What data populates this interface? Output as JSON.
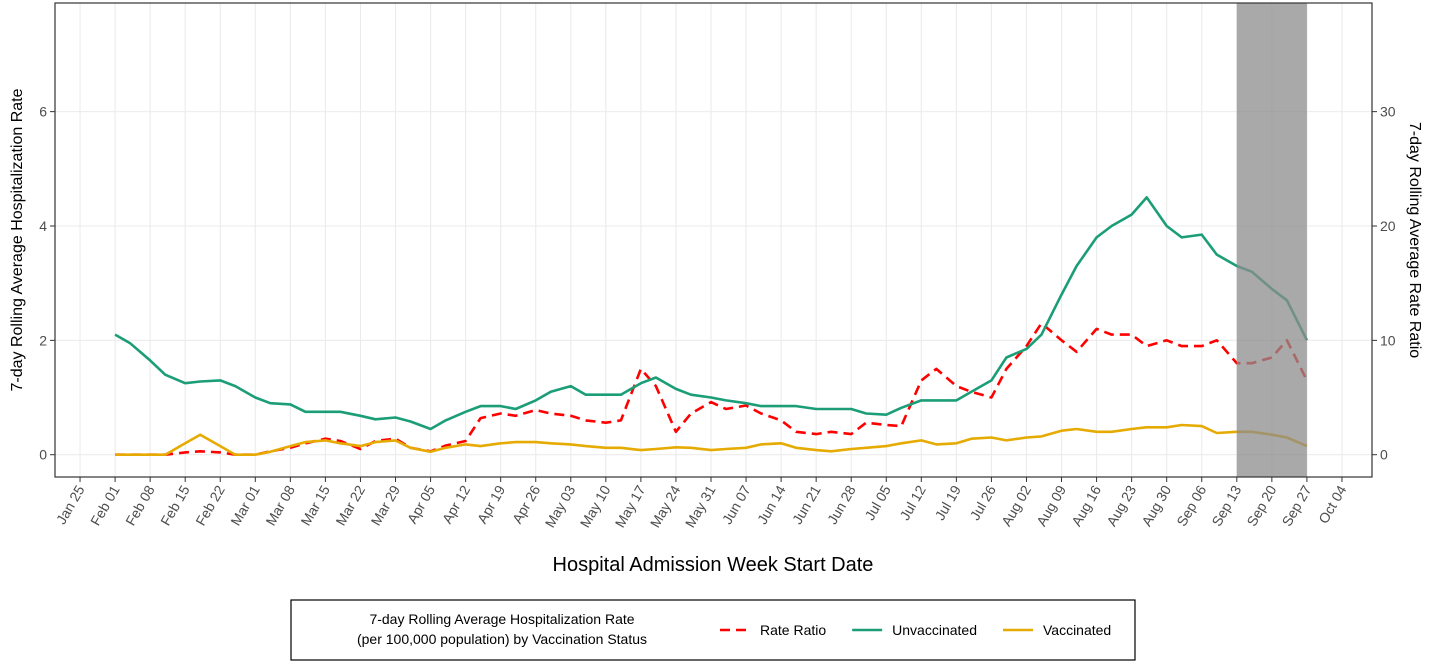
{
  "chart_data": {
    "type": "line",
    "x_label": "Hospital Admission Week Start Date",
    "y_label": "7-day Rolling Average Hospitalization Rate",
    "y2_label": "7-day Rolling Average Rate Ratio",
    "legend_title": [
      "7-day Rolling Average Hospitalization Rate",
      "(per 100,000 population) by Vaccination Status"
    ],
    "legend_position": "bottom",
    "grid": true,
    "shaded_region": [
      "Sep 13",
      "Sep 27"
    ],
    "shaded_color": "#8c8c8c",
    "xlim": [
      "Jan 20",
      "Oct 10"
    ],
    "xticks": [
      "Jan 25",
      "Feb 01",
      "Feb 08",
      "Feb 15",
      "Feb 22",
      "Mar 01",
      "Mar 08",
      "Mar 15",
      "Mar 22",
      "Mar 29",
      "Apr 05",
      "Apr 12",
      "Apr 19",
      "Apr 26",
      "May 03",
      "May 10",
      "May 17",
      "May 24",
      "May 31",
      "Jun 07",
      "Jun 14",
      "Jun 21",
      "Jun 28",
      "Jul 05",
      "Jul 12",
      "Jul 19",
      "Jul 26",
      "Aug 02",
      "Aug 09",
      "Aug 16",
      "Aug 23",
      "Aug 30",
      "Sep 06",
      "Sep 13",
      "Sep 20",
      "Sep 27",
      "Oct 04"
    ],
    "ylim": [
      -0.39,
      7.9
    ],
    "yticks": [
      0,
      2,
      4,
      6
    ],
    "y2lim": [
      -1.95,
      39.5
    ],
    "y2ticks": [
      0,
      10,
      20,
      30
    ],
    "x": [
      "Feb 01",
      "Feb 04",
      "Feb 08",
      "Feb 11",
      "Feb 15",
      "Feb 18",
      "Feb 22",
      "Feb 25",
      "Mar 01",
      "Mar 04",
      "Mar 08",
      "Mar 11",
      "Mar 15",
      "Mar 18",
      "Mar 22",
      "Mar 25",
      "Mar 29",
      "Apr 01",
      "Apr 05",
      "Apr 08",
      "Apr 12",
      "Apr 15",
      "Apr 19",
      "Apr 22",
      "Apr 26",
      "Apr 29",
      "May 03",
      "May 06",
      "May 10",
      "May 13",
      "May 17",
      "May 20",
      "May 24",
      "May 27",
      "May 31",
      "Jun 03",
      "Jun 07",
      "Jun 10",
      "Jun 14",
      "Jun 17",
      "Jun 21",
      "Jun 24",
      "Jun 28",
      "Jul 01",
      "Jul 05",
      "Jul 08",
      "Jul 12",
      "Jul 15",
      "Jul 19",
      "Jul 22",
      "Jul 26",
      "Jul 29",
      "Aug 02",
      "Aug 05",
      "Aug 09",
      "Aug 12",
      "Aug 16",
      "Aug 19",
      "Aug 23",
      "Aug 26",
      "Aug 30",
      "Sep 02",
      "Sep 06",
      "Sep 09",
      "Sep 13",
      "Sep 16",
      "Sep 20",
      "Sep 23",
      "Sep 27"
    ],
    "series": [
      {
        "name": "Rate Ratio",
        "color": "#ff0000",
        "dashed": true,
        "axis": "y2",
        "values": [
          0,
          0,
          0,
          0,
          0.2,
          0.3,
          0.2,
          0,
          0,
          0.3,
          0.6,
          1.0,
          1.4,
          1.2,
          0.5,
          1.2,
          1.4,
          0.6,
          0.3,
          0.8,
          1.2,
          3.2,
          3.6,
          3.4,
          3.9,
          3.6,
          3.4,
          3.0,
          2.8,
          3.0,
          7.5,
          6.0,
          2.0,
          3.6,
          4.6,
          4.0,
          4.3,
          3.6,
          3.0,
          2.0,
          1.8,
          2.0,
          1.8,
          2.8,
          2.6,
          2.5,
          6.5,
          7.5,
          6.0,
          5.5,
          5.0,
          7.5,
          9.5,
          11.5,
          10.0,
          9.0,
          11.0,
          10.5,
          10.5,
          9.5,
          10.0,
          9.5,
          9.5,
          10.0,
          8.0,
          8.0,
          8.5,
          10.0,
          6.5
        ]
      },
      {
        "name": "Unvaccinated",
        "color": "#1b9e77",
        "values": [
          2.1,
          1.95,
          1.65,
          1.4,
          1.25,
          1.28,
          1.3,
          1.2,
          1.0,
          0.9,
          0.88,
          0.75,
          0.75,
          0.75,
          0.68,
          0.62,
          0.65,
          0.58,
          0.45,
          0.6,
          0.75,
          0.85,
          0.85,
          0.8,
          0.95,
          1.1,
          1.2,
          1.05,
          1.05,
          1.05,
          1.25,
          1.35,
          1.15,
          1.05,
          1.0,
          0.95,
          0.9,
          0.85,
          0.85,
          0.85,
          0.8,
          0.8,
          0.8,
          0.72,
          0.7,
          0.82,
          0.95,
          0.95,
          0.95,
          1.1,
          1.3,
          1.7,
          1.85,
          2.1,
          2.8,
          3.3,
          3.8,
          4.0,
          4.2,
          4.5,
          4.0,
          3.8,
          3.85,
          3.5,
          3.3,
          3.2,
          2.9,
          2.7,
          2.0
        ]
      },
      {
        "name": "Vaccinated",
        "color": "#e6ab02",
        "values": [
          0,
          0,
          0,
          0,
          0.2,
          0.35,
          0.15,
          0,
          0,
          0.05,
          0.15,
          0.22,
          0.25,
          0.2,
          0.15,
          0.22,
          0.25,
          0.12,
          0.05,
          0.12,
          0.18,
          0.15,
          0.2,
          0.22,
          0.22,
          0.2,
          0.18,
          0.15,
          0.12,
          0.12,
          0.08,
          0.1,
          0.13,
          0.12,
          0.08,
          0.1,
          0.12,
          0.18,
          0.2,
          0.12,
          0.08,
          0.06,
          0.1,
          0.12,
          0.15,
          0.2,
          0.25,
          0.18,
          0.2,
          0.28,
          0.3,
          0.25,
          0.3,
          0.32,
          0.42,
          0.45,
          0.4,
          0.4,
          0.45,
          0.48,
          0.48,
          0.52,
          0.5,
          0.38,
          0.4,
          0.4,
          0.35,
          0.3,
          0.15
        ]
      }
    ]
  }
}
